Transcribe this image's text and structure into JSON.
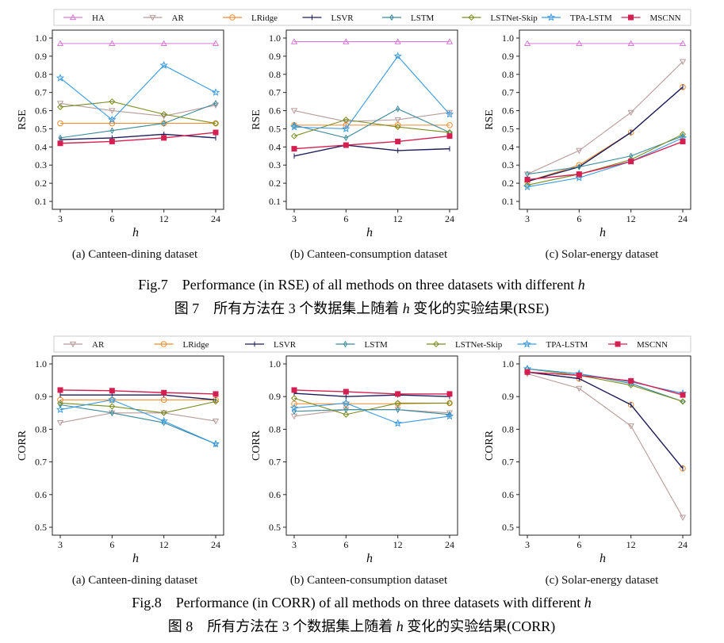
{
  "figure7": {
    "legend": [
      "HA",
      "AR",
      "LRidge",
      "LSVR",
      "LSTM",
      "LSTNet-Skip",
      "TPA-LSTM",
      "MSCNN"
    ],
    "caption_en_prefix": "Fig.7    Performance (in RSE) of all methods on three datasets with different ",
    "caption_en_var": "h",
    "caption_zh_prefix": "图 7    所有方法在 3 个数据集上随着 ",
    "caption_zh_var": "h",
    "caption_zh_suffix": " 变化的实验结果(RSE)"
  },
  "figure8": {
    "legend": [
      "AR",
      "LRidge",
      "LSVR",
      "LSTM",
      "LSTNet-Skip",
      "TPA-LSTM",
      "MSCNN"
    ],
    "caption_en_prefix": "Fig.8    Performance (in CORR) of all methods on three datasets with different ",
    "caption_en_var": "h",
    "caption_zh_prefix": "图 8    所有方法在 3 个数据集上随着 ",
    "caption_zh_var": "h",
    "caption_zh_suffix": " 变化的实验结果(CORR)"
  },
  "series_style": {
    "HA": {
      "color": "#d67ad6",
      "marker": "triangle-up"
    },
    "AR": {
      "color": "#b89a9a",
      "marker": "triangle-down"
    },
    "LRidge": {
      "color": "#f08c30",
      "marker": "circle"
    },
    "LSVR": {
      "color": "#1c1c5c",
      "marker": "vline"
    },
    "LSTM": {
      "color": "#3a8a9a",
      "marker": "diamond-thin"
    },
    "LSTNet-Skip": {
      "color": "#7a8c22",
      "marker": "diamond"
    },
    "TPA-LSTM": {
      "color": "#3a9ae0",
      "marker": "star"
    },
    "MSCNN": {
      "color": "#d42050",
      "marker": "square"
    }
  },
  "chart_data": [
    {
      "type": "line",
      "figure": 7,
      "metric": "RSE",
      "subtitle": "(a) Canteen-dining dataset",
      "xlabel": "h",
      "ylabel": "RSE",
      "categories": [
        "3",
        "6",
        "12",
        "24"
      ],
      "ylim": [
        0.1,
        1.0
      ],
      "yticks": [
        "0.1",
        "0.2",
        "0.3",
        "0.4",
        "0.5",
        "0.6",
        "0.7",
        "0.8",
        "0.9",
        "1.0"
      ],
      "series": [
        {
          "name": "HA",
          "values": [
            0.97,
            0.97,
            0.97,
            0.97
          ]
        },
        {
          "name": "AR",
          "values": [
            0.64,
            0.6,
            0.57,
            0.63
          ]
        },
        {
          "name": "LRidge",
          "values": [
            0.53,
            0.53,
            0.53,
            0.53
          ]
        },
        {
          "name": "LSVR",
          "values": [
            0.44,
            0.45,
            0.47,
            0.45
          ]
        },
        {
          "name": "LSTM",
          "values": [
            0.45,
            0.49,
            0.53,
            0.64
          ]
        },
        {
          "name": "LSTNet-Skip",
          "values": [
            0.62,
            0.65,
            0.58,
            0.53
          ]
        },
        {
          "name": "TPA-LSTM",
          "values": [
            0.78,
            0.55,
            0.85,
            0.7
          ]
        },
        {
          "name": "MSCNN",
          "values": [
            0.42,
            0.43,
            0.45,
            0.48
          ]
        }
      ]
    },
    {
      "type": "line",
      "figure": 7,
      "metric": "RSE",
      "subtitle": "(b) Canteen-consumption dataset",
      "xlabel": "h",
      "ylabel": "RSE",
      "categories": [
        "3",
        "6",
        "12",
        "24"
      ],
      "ylim": [
        0.1,
        1.0
      ],
      "yticks": [
        "0.1",
        "0.2",
        "0.3",
        "0.4",
        "0.5",
        "0.6",
        "0.7",
        "0.8",
        "0.9",
        "1.0"
      ],
      "series": [
        {
          "name": "HA",
          "values": [
            0.98,
            0.98,
            0.98,
            0.98
          ]
        },
        {
          "name": "AR",
          "values": [
            0.6,
            0.54,
            0.55,
            0.59
          ]
        },
        {
          "name": "LRidge",
          "values": [
            0.52,
            0.52,
            0.52,
            0.52
          ]
        },
        {
          "name": "LSVR",
          "values": [
            0.35,
            0.41,
            0.38,
            0.39
          ]
        },
        {
          "name": "LSTM",
          "values": [
            0.52,
            0.45,
            0.61,
            0.48
          ]
        },
        {
          "name": "LSTNet-Skip",
          "values": [
            0.46,
            0.55,
            0.51,
            0.48
          ]
        },
        {
          "name": "TPA-LSTM",
          "values": [
            0.51,
            0.5,
            0.9,
            0.58
          ]
        },
        {
          "name": "MSCNN",
          "values": [
            0.39,
            0.41,
            0.43,
            0.46
          ]
        }
      ]
    },
    {
      "type": "line",
      "figure": 7,
      "metric": "RSE",
      "subtitle": "(c) Solar-energy dataset",
      "xlabel": "h",
      "ylabel": "RSE",
      "categories": [
        "3",
        "6",
        "12",
        "24"
      ],
      "ylim": [
        0.1,
        1.0
      ],
      "yticks": [
        "0.1",
        "0.2",
        "0.3",
        "0.4",
        "0.5",
        "0.6",
        "0.7",
        "0.8",
        "0.9",
        "1.0"
      ],
      "series": [
        {
          "name": "HA",
          "values": [
            0.97,
            0.97,
            0.97,
            0.97
          ]
        },
        {
          "name": "AR",
          "values": [
            0.25,
            0.38,
            0.59,
            0.87
          ]
        },
        {
          "name": "LRidge",
          "values": [
            0.21,
            0.3,
            0.48,
            0.73
          ]
        },
        {
          "name": "LSVR",
          "values": [
            0.21,
            0.29,
            0.48,
            0.73
          ]
        },
        {
          "name": "LSTM",
          "values": [
            0.25,
            0.29,
            0.35,
            0.46
          ]
        },
        {
          "name": "LSTNet-Skip",
          "values": [
            0.19,
            0.25,
            0.33,
            0.47
          ]
        },
        {
          "name": "TPA-LSTM",
          "values": [
            0.18,
            0.23,
            0.32,
            0.45
          ]
        },
        {
          "name": "MSCNN",
          "values": [
            0.22,
            0.25,
            0.32,
            0.43
          ]
        }
      ]
    },
    {
      "type": "line",
      "figure": 8,
      "metric": "CORR",
      "subtitle": "(a) Canteen-dining dataset",
      "xlabel": "h",
      "ylabel": "CORR",
      "categories": [
        "3",
        "6",
        "12",
        "24"
      ],
      "ylim": [
        0.5,
        1.0
      ],
      "yticks": [
        "0.5",
        "0.6",
        "0.7",
        "0.8",
        "0.9",
        "1.0"
      ],
      "series": [
        {
          "name": "AR",
          "values": [
            0.82,
            0.85,
            0.85,
            0.825
          ]
        },
        {
          "name": "LRidge",
          "values": [
            0.89,
            0.89,
            0.89,
            0.89
          ]
        },
        {
          "name": "LSVR",
          "values": [
            0.905,
            0.905,
            0.905,
            0.89
          ]
        },
        {
          "name": "LSTM",
          "values": [
            0.875,
            0.85,
            0.82,
            0.755
          ]
        },
        {
          "name": "LSTNet-Skip",
          "values": [
            0.88,
            0.87,
            0.85,
            0.885
          ]
        },
        {
          "name": "TPA-LSTM",
          "values": [
            0.86,
            0.89,
            0.825,
            0.755
          ]
        },
        {
          "name": "MSCNN",
          "values": [
            0.92,
            0.918,
            0.912,
            0.908
          ]
        }
      ]
    },
    {
      "type": "line",
      "figure": 8,
      "metric": "CORR",
      "subtitle": "(b) Canteen-consumption dataset",
      "xlabel": "h",
      "ylabel": "CORR",
      "categories": [
        "3",
        "6",
        "12",
        "24"
      ],
      "ylim": [
        0.5,
        1.0
      ],
      "yticks": [
        "0.5",
        "0.6",
        "0.7",
        "0.8",
        "0.9",
        "1.0"
      ],
      "series": [
        {
          "name": "AR",
          "values": [
            0.84,
            0.86,
            0.86,
            0.85
          ]
        },
        {
          "name": "LRidge",
          "values": [
            0.878,
            0.878,
            0.878,
            0.88
          ]
        },
        {
          "name": "LSVR",
          "values": [
            0.91,
            0.9,
            0.905,
            0.9
          ]
        },
        {
          "name": "LSTM",
          "values": [
            0.855,
            0.86,
            0.86,
            0.845
          ]
        },
        {
          "name": "LSTNet-Skip",
          "values": [
            0.895,
            0.845,
            0.88,
            0.88
          ]
        },
        {
          "name": "TPA-LSTM",
          "values": [
            0.865,
            0.88,
            0.818,
            0.84
          ]
        },
        {
          "name": "MSCNN",
          "values": [
            0.92,
            0.915,
            0.908,
            0.908
          ]
        }
      ]
    },
    {
      "type": "line",
      "figure": 8,
      "metric": "CORR",
      "subtitle": "(c) Solar-energy dataset",
      "xlabel": "h",
      "ylabel": "CORR",
      "categories": [
        "3",
        "6",
        "12",
        "24"
      ],
      "ylim": [
        0.5,
        1.0
      ],
      "yticks": [
        "0.5",
        "0.6",
        "0.7",
        "0.8",
        "0.9",
        "1.0"
      ],
      "series": [
        {
          "name": "AR",
          "values": [
            0.97,
            0.925,
            0.81,
            0.53
          ]
        },
        {
          "name": "LRidge",
          "values": [
            0.975,
            0.955,
            0.875,
            0.68
          ]
        },
        {
          "name": "LSVR",
          "values": [
            0.975,
            0.955,
            0.875,
            0.68
          ]
        },
        {
          "name": "LSTM",
          "values": [
            0.985,
            0.97,
            0.94,
            0.885
          ]
        },
        {
          "name": "LSTNet-Skip",
          "values": [
            0.985,
            0.965,
            0.935,
            0.885
          ]
        },
        {
          "name": "TPA-LSTM",
          "values": [
            0.985,
            0.97,
            0.945,
            0.91
          ]
        },
        {
          "name": "MSCNN",
          "values": [
            0.975,
            0.965,
            0.948,
            0.905
          ]
        }
      ]
    }
  ]
}
